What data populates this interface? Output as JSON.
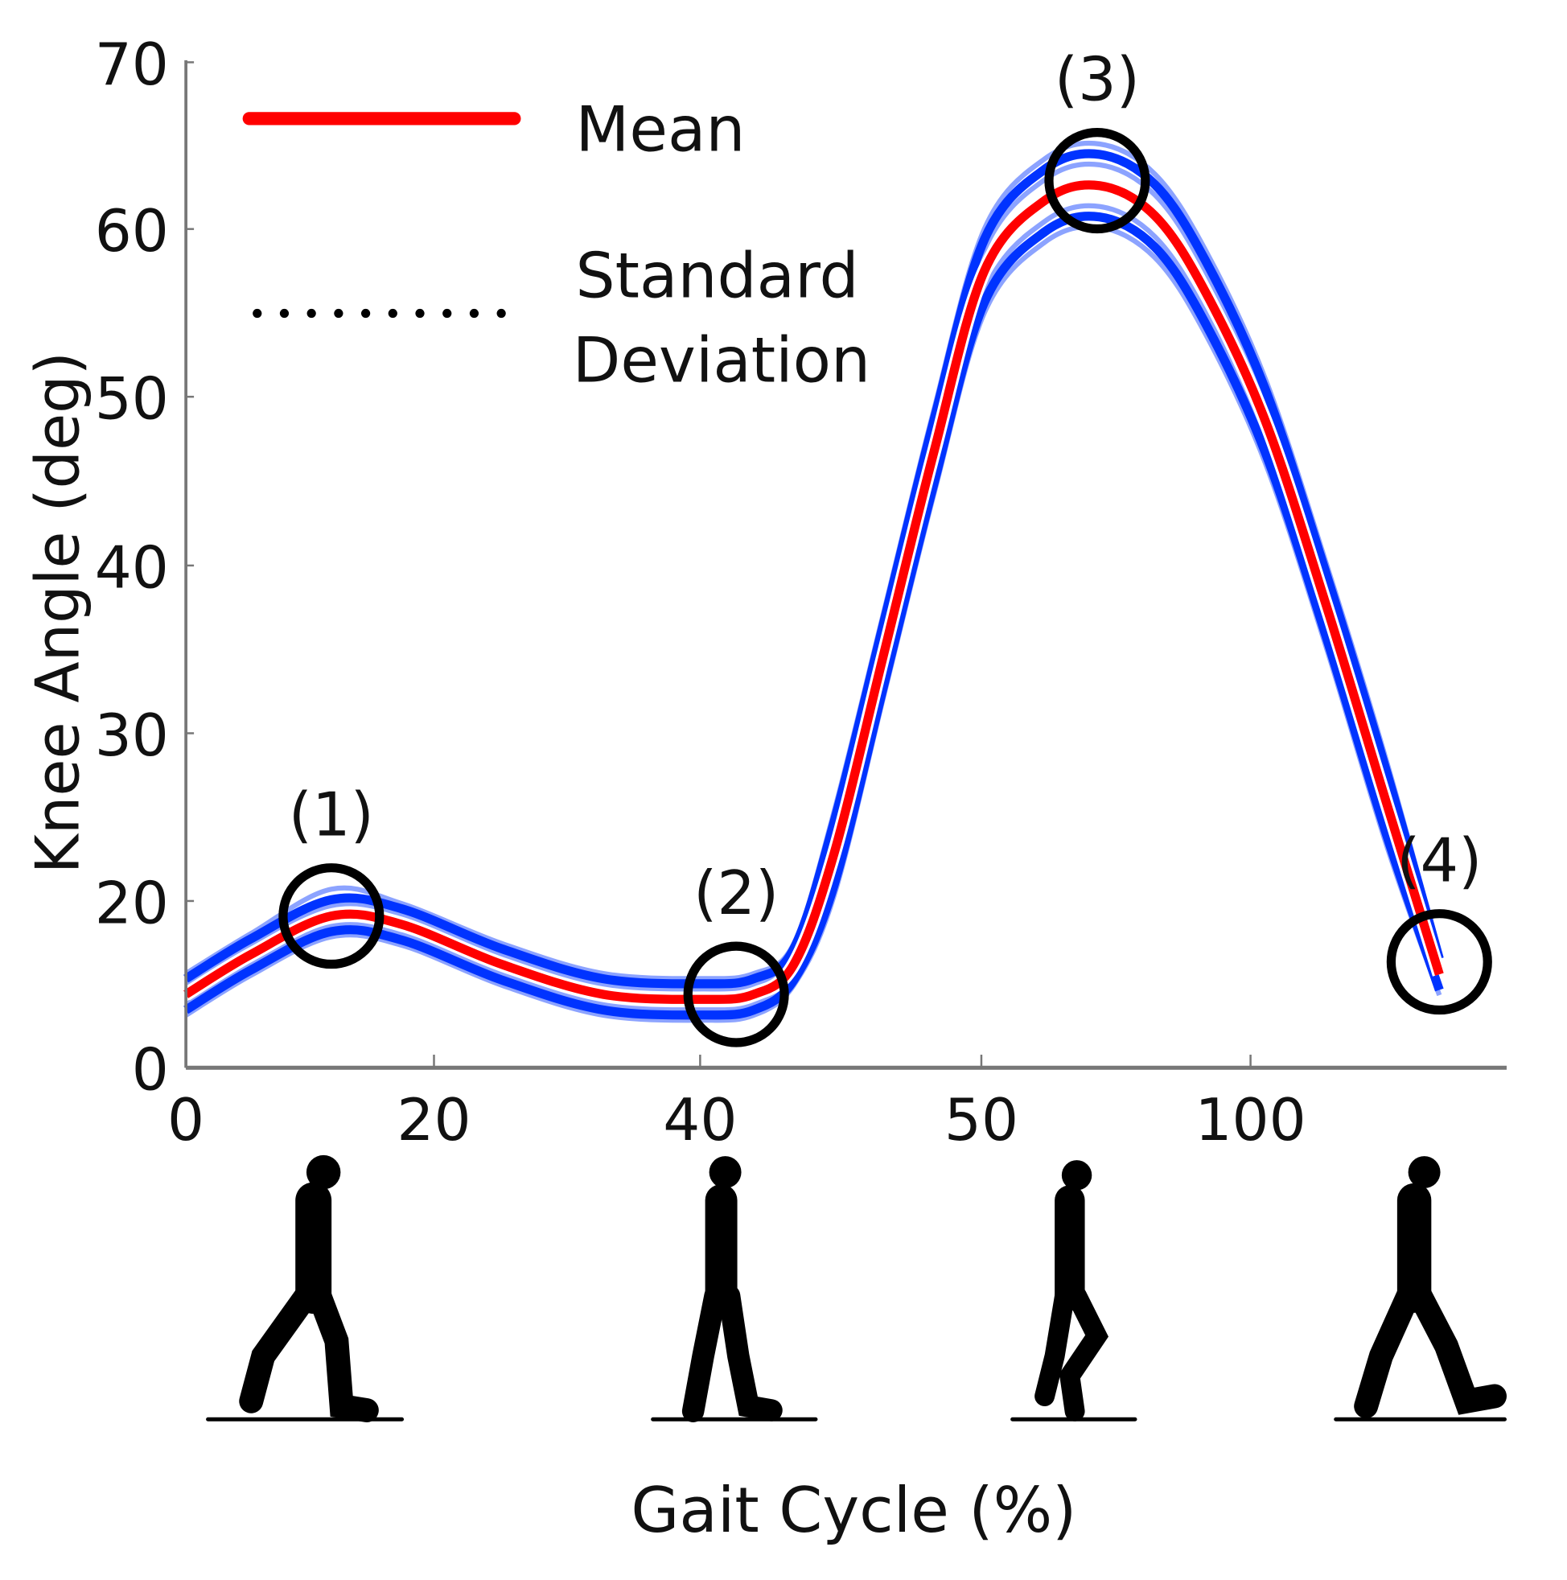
{
  "chart_data": {
    "type": "line",
    "xlabel": "Gait Cycle (%)",
    "ylabel": "Knee Angle (deg)",
    "x_tick_labels": [
      "0",
      "20",
      "40",
      "50",
      "100"
    ],
    "y_tick_labels": [
      "0",
      "20",
      "30",
      "40",
      "50",
      "60",
      "70"
    ],
    "ylim": [
      0,
      70
    ],
    "grid": false,
    "legend": {
      "placement": "top-left",
      "entries": [
        {
          "label": "Mean",
          "style": "solid",
          "color": "#ff0000"
        },
        {
          "label_lines": [
            "Standard",
            "Deviation"
          ],
          "style": "dotted",
          "color": "#000000"
        }
      ]
    },
    "series": [
      {
        "name": "Mean",
        "color": "#ff0000",
        "x": [
          0,
          5.2,
          11.6,
          17.2,
          25.2,
          33.3,
          41.3,
          45.3,
          48.5,
          51.7,
          55.7,
          59.7,
          63.7,
          68.5,
          72.9,
          77.3,
          81.3,
          86.1,
          90.9,
          95.8,
          100
        ],
        "y": [
          8.8,
          13.6,
          18.2,
          17.2,
          12.4,
          8.8,
          8.2,
          8.8,
          12.4,
          22.8,
          34.8,
          46.8,
          57.5,
          61.7,
          62.6,
          60.8,
          56.3,
          48.6,
          37.8,
          25.8,
          11.2
        ]
      },
      {
        "name": "Standard Deviation",
        "color": "#0033ff",
        "band_halfwidth_deg": 2.5
      }
    ],
    "annotations": [
      {
        "label": "(1)",
        "x": 11.6,
        "y": 18.2
      },
      {
        "label": "(2)",
        "x": 43.9,
        "y": 8.8
      },
      {
        "label": "(3)",
        "x": 72.7,
        "y": 62.9
      },
      {
        "label": "(4)",
        "x": 100,
        "y": 12.7
      }
    ]
  }
}
